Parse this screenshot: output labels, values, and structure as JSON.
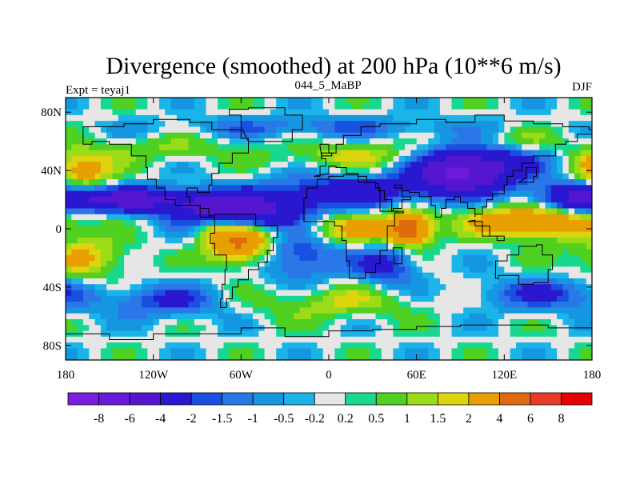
{
  "chart_data": {
    "type": "heatmap",
    "title": "Divergence (smoothed) at 200 hPa (10**6 m/s)",
    "left_label": "Expt = teyaj1",
    "center_label": "044_5_MaBP",
    "right_label": "DJF",
    "x_ticks": [
      {
        "value": -180,
        "label": "180"
      },
      {
        "value": -120,
        "label": "120W"
      },
      {
        "value": -60,
        "label": "60W"
      },
      {
        "value": 0,
        "label": "0"
      },
      {
        "value": 60,
        "label": "60E"
      },
      {
        "value": 120,
        "label": "120E"
      },
      {
        "value": 180,
        "label": "180"
      }
    ],
    "y_ticks": [
      {
        "value": 80,
        "label": "80N"
      },
      {
        "value": 40,
        "label": "40N"
      },
      {
        "value": 0,
        "label": "0"
      },
      {
        "value": -40,
        "label": "40S"
      },
      {
        "value": -80,
        "label": "80S"
      }
    ],
    "xlim": [
      -180,
      180
    ],
    "ylim": [
      -90,
      90
    ],
    "colorbar": {
      "colors": [
        "#7a1ee0",
        "#6a1ad8",
        "#5516cf",
        "#2a18d0",
        "#1a50e0",
        "#2a78e8",
        "#1496e0",
        "#1ab4e8",
        "#e6e6e6",
        "#18d890",
        "#50d020",
        "#9adc18",
        "#dcd40e",
        "#e8a000",
        "#e06a0e",
        "#e83a28",
        "#e60000"
      ],
      "labels": [
        "-8",
        "-6",
        "-4",
        "-2",
        "-1.5",
        "-1",
        "-0.5",
        "-0.2",
        "0.2",
        "0.5",
        "1",
        "1.5",
        "2",
        "4",
        "6",
        "8"
      ]
    },
    "field_features": [
      {
        "lon": -130,
        "lat": 20,
        "amp": -4.5,
        "slon": 45,
        "slat": 6
      },
      {
        "lon": -60,
        "lat": 10,
        "amp": -5,
        "slon": 30,
        "slat": 8
      },
      {
        "lon": 10,
        "lat": 25,
        "amp": -3,
        "slon": 40,
        "slat": 8
      },
      {
        "lon": 85,
        "lat": 38,
        "amp": -5,
        "slon": 22,
        "slat": 10
      },
      {
        "lon": 110,
        "lat": 45,
        "amp": -3,
        "slon": 25,
        "slat": 12
      },
      {
        "lon": 170,
        "lat": 22,
        "amp": -3,
        "slon": 20,
        "slat": 8
      },
      {
        "lon": -20,
        "lat": -15,
        "amp": -2.5,
        "slon": 20,
        "slat": 15
      },
      {
        "lon": 40,
        "lat": -25,
        "amp": -2.5,
        "slon": 15,
        "slat": 10
      },
      {
        "lon": -110,
        "lat": -50,
        "amp": -2,
        "slon": 30,
        "slat": 8
      },
      {
        "lon": 150,
        "lat": -45,
        "amp": -2,
        "slon": 35,
        "slat": 8
      },
      {
        "lon": -10,
        "lat": 70,
        "amp": -1.5,
        "slon": 70,
        "slat": 5
      },
      {
        "lon": -170,
        "lat": 40,
        "amp": 3,
        "slon": 15,
        "slat": 10
      },
      {
        "lon": -165,
        "lat": -20,
        "amp": 2,
        "slon": 20,
        "slat": 10
      },
      {
        "lon": -60,
        "lat": -10,
        "amp": 4.5,
        "slon": 15,
        "slat": 10
      },
      {
        "lon": -80,
        "lat": 0,
        "amp": 2,
        "slon": 10,
        "slat": 5
      },
      {
        "lon": 5,
        "lat": 0,
        "amp": 2.5,
        "slon": 35,
        "slat": 8
      },
      {
        "lon": 55,
        "lat": 0,
        "amp": 5,
        "slon": 10,
        "slat": 8
      },
      {
        "lon": 140,
        "lat": 5,
        "amp": 4,
        "slon": 30,
        "slat": 8
      },
      {
        "lon": 20,
        "lat": 50,
        "amp": 1.5,
        "slon": 40,
        "slat": 6
      },
      {
        "lon": 125,
        "lat": 60,
        "amp": 1.5,
        "slon": 25,
        "slat": 6
      },
      {
        "lon": -110,
        "lat": 55,
        "amp": 1,
        "slon": 30,
        "slat": 6
      },
      {
        "lon": 0,
        "lat": -50,
        "amp": 1.5,
        "slon": 40,
        "slat": 8
      }
    ]
  }
}
